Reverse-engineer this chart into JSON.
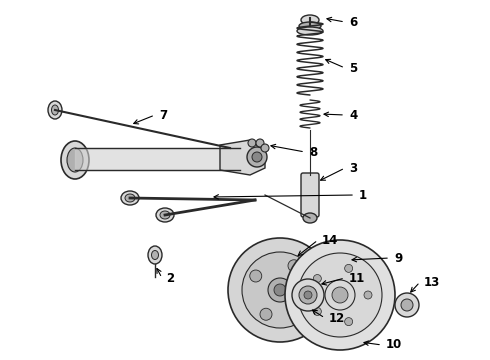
{
  "bg_color": "#ffffff",
  "line_color": "#2a2a2a",
  "label_color": "#000000",
  "figsize": [
    4.9,
    3.6
  ],
  "dpi": 100,
  "spring_color": "#2a2a2a",
  "part_color": "#c8c8c8",
  "part_edge": "#2a2a2a"
}
